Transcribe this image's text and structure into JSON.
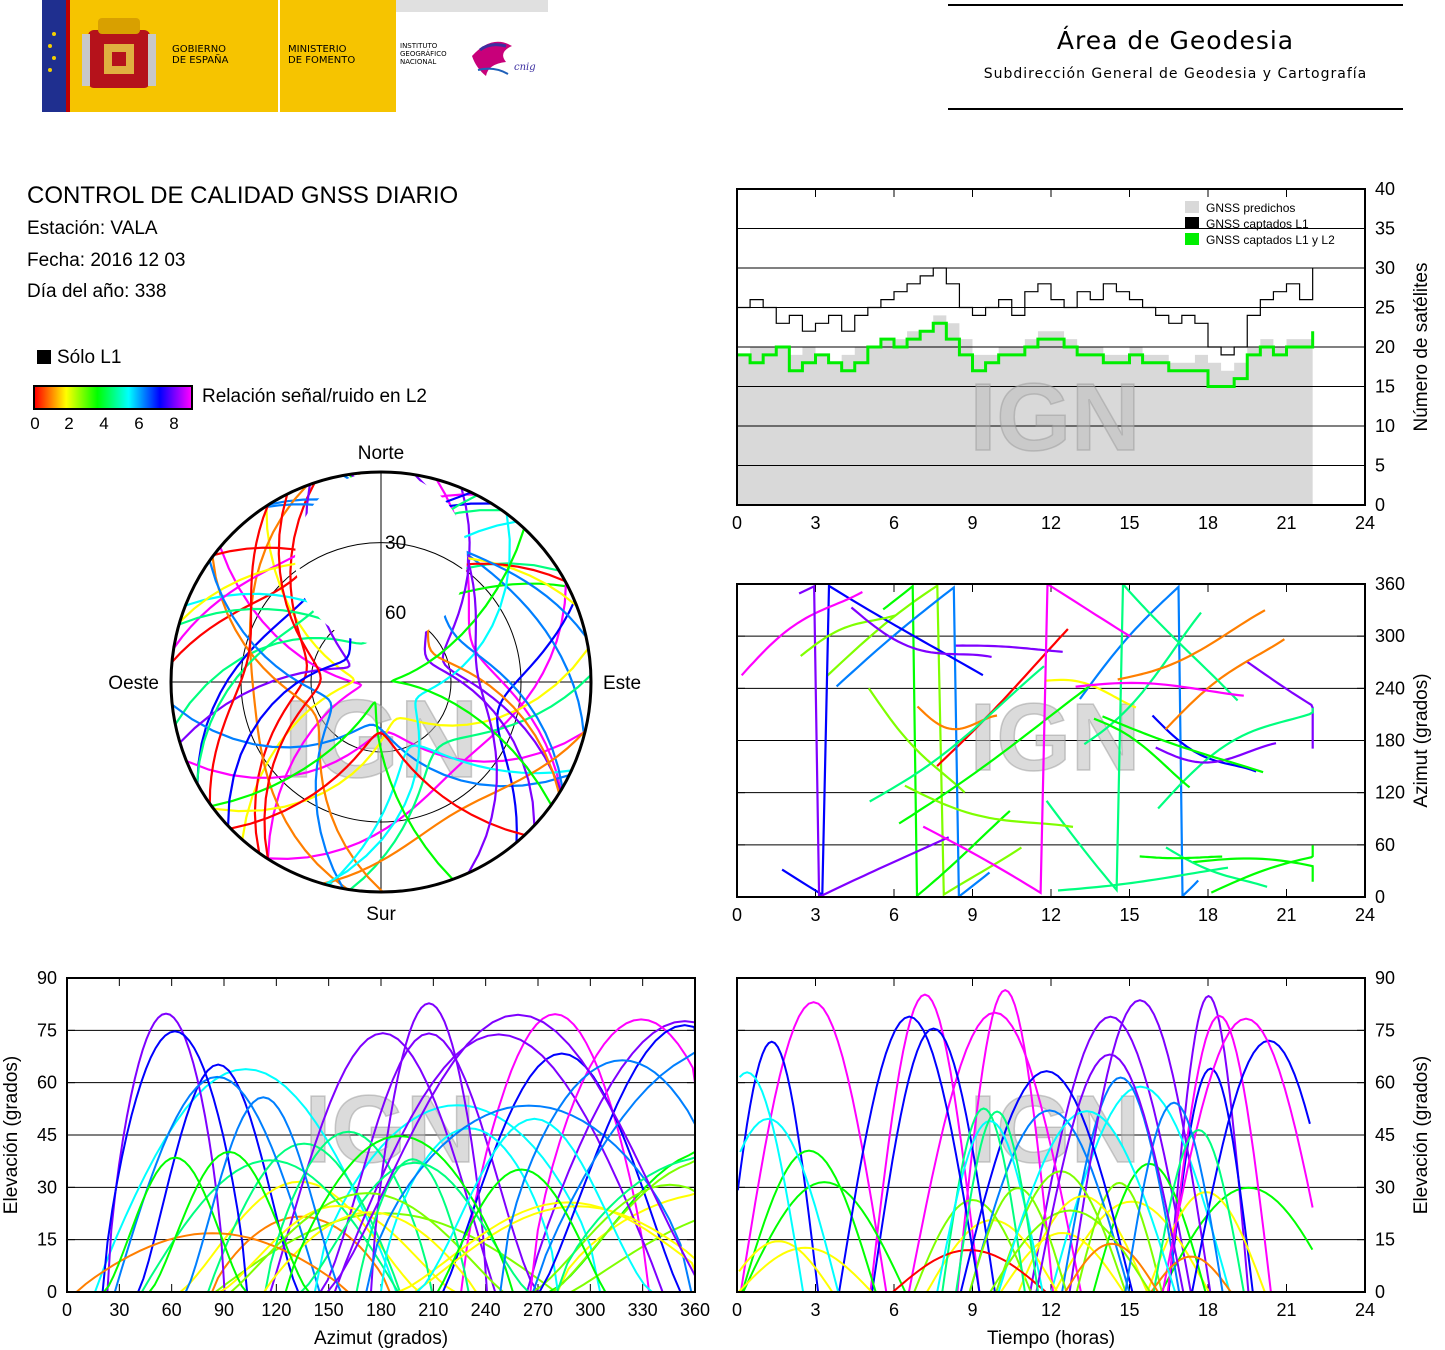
{
  "header": {
    "gobierno": [
      "GOBIERNO",
      "DE ESPAÑA"
    ],
    "ministerio": [
      "MINISTERIO",
      "DE FOMENTO"
    ],
    "instituto": [
      "INSTITUTO",
      "GEOGRÁFICO",
      "NACIONAL"
    ],
    "cnig_text": "cnig",
    "area_title": "Área de Geodesia",
    "area_subtitle": "Subdirección General de Geodesia y Cartografía"
  },
  "report": {
    "title": "CONTROL DE CALIDAD GNSS DIARIO",
    "station": "Estación: VALA",
    "date": "Fecha: 2016 12 03",
    "doy": "Día del año: 338"
  },
  "legend": {
    "l1_only": "Sólo L1",
    "snr_label": "Relación señal/ruido en L2",
    "snr_ticks": [
      "0",
      "2",
      "4",
      "6",
      "8"
    ],
    "colors": [
      "#ff0000",
      "#ff7f00",
      "#ffff00",
      "#7fff00",
      "#00ff00",
      "#00ff7f",
      "#00ffff",
      "#007fff",
      "#0000ff",
      "#7f00ff",
      "#ff00ff"
    ]
  },
  "watermark": "IGN",
  "chart_data": [
    {
      "id": "satellites",
      "type": "area",
      "x_range": [
        0,
        24
      ],
      "ylim": [
        0,
        40
      ],
      "ylabel": "Número de satélites",
      "x_ticks": [
        0,
        3,
        6,
        9,
        12,
        15,
        18,
        21,
        24
      ],
      "y_ticks": [
        0,
        5,
        10,
        15,
        20,
        25,
        30,
        35,
        40
      ],
      "legend_position": "top-right",
      "series": [
        {
          "name": "GNSS predichos",
          "color": "#d9d9d9",
          "x": [
            0,
            0.5,
            1,
            1.5,
            2,
            2.5,
            3,
            3.5,
            4,
            4.5,
            5,
            5.5,
            6,
            6.5,
            7,
            7.5,
            8,
            8.5,
            9,
            9.5,
            10,
            10.5,
            11,
            11.5,
            12,
            12.5,
            13,
            13.5,
            14,
            14.5,
            15,
            15.5,
            16,
            16.5,
            17,
            17.5,
            18,
            18.5,
            19,
            19.5,
            20,
            20.5,
            21,
            21.5,
            22
          ],
          "y": [
            19,
            20,
            20,
            20,
            19,
            20,
            19,
            18,
            19,
            20,
            20,
            21,
            21,
            22,
            22,
            24,
            23,
            21,
            19,
            19,
            20,
            20,
            21,
            22,
            22,
            21,
            20,
            20,
            19,
            19,
            20,
            19,
            19,
            18,
            18,
            19,
            18,
            17,
            18,
            20,
            21,
            20,
            21,
            21,
            22
          ]
        },
        {
          "name": "GNSS captados L1",
          "color": "#000000",
          "x": [
            0,
            0.5,
            1,
            1.5,
            2,
            2.5,
            3,
            3.5,
            4,
            4.5,
            5,
            5.5,
            6,
            6.5,
            7,
            7.5,
            8,
            8.5,
            9,
            9.5,
            10,
            10.5,
            11,
            11.5,
            12,
            12.5,
            13,
            13.5,
            14,
            14.5,
            15,
            15.5,
            16,
            16.5,
            17,
            17.5,
            18,
            18.5,
            19,
            19.5,
            20,
            20.5,
            21,
            21.5,
            22
          ],
          "y": [
            25,
            26,
            25,
            23,
            24,
            22,
            23,
            24,
            22,
            24,
            25,
            26,
            27,
            28,
            29,
            30,
            28,
            25,
            24,
            25,
            26,
            24,
            27,
            28,
            26,
            25,
            27,
            26,
            28,
            27,
            26,
            25,
            24,
            23,
            24,
            23,
            20,
            19,
            20,
            24,
            26,
            27,
            28,
            26,
            30
          ]
        },
        {
          "name": "GNSS captados L1 y L2",
          "color": "#00ee00",
          "x": [
            0,
            0.5,
            1,
            1.5,
            2,
            2.5,
            3,
            3.5,
            4,
            4.5,
            5,
            5.5,
            6,
            6.5,
            7,
            7.5,
            8,
            8.5,
            9,
            9.5,
            10,
            10.5,
            11,
            11.5,
            12,
            12.5,
            13,
            13.5,
            14,
            14.5,
            15,
            15.5,
            16,
            16.5,
            17,
            17.5,
            18,
            18.5,
            19,
            19.5,
            20,
            20.5,
            21,
            21.5,
            22
          ],
          "y": [
            19,
            18,
            19,
            20,
            17,
            18,
            19,
            18,
            17,
            18,
            20,
            21,
            20,
            21,
            22,
            23,
            21,
            19,
            17,
            18,
            19,
            19,
            20,
            21,
            21,
            20,
            19,
            19,
            18,
            18,
            19,
            18,
            18,
            17,
            17,
            17,
            15,
            15,
            16,
            19,
            20,
            19,
            20,
            20,
            22
          ]
        }
      ]
    },
    {
      "id": "azimuth-time",
      "type": "scatter",
      "x_range": [
        0,
        24
      ],
      "ylim": [
        0,
        360
      ],
      "ylabel": "Azimut (grados)",
      "x_ticks": [
        0,
        3,
        6,
        9,
        12,
        15,
        18,
        21,
        24
      ],
      "y_ticks": [
        0,
        60,
        120,
        180,
        240,
        300,
        360
      ]
    },
    {
      "id": "skyplot",
      "type": "scatter",
      "directions": {
        "north": "Norte",
        "south": "Sur",
        "east": "Este",
        "west": "Oeste"
      },
      "ring_labels": [
        "30",
        "60"
      ]
    },
    {
      "id": "elev-azimuth",
      "type": "scatter",
      "x_range": [
        0,
        360
      ],
      "ylim": [
        0,
        90
      ],
      "xlabel": "Azimut (grados)",
      "ylabel": "Elevación (grados)",
      "x_ticks": [
        0,
        30,
        60,
        90,
        120,
        150,
        180,
        210,
        240,
        270,
        300,
        330,
        360
      ],
      "y_ticks": [
        0,
        15,
        30,
        45,
        60,
        75,
        90
      ]
    },
    {
      "id": "elev-time",
      "type": "scatter",
      "x_range": [
        0,
        24
      ],
      "ylim": [
        0,
        90
      ],
      "xlabel": "Tiempo (horas)",
      "ylabel": "Elevación (grados)",
      "x_ticks": [
        0,
        3,
        6,
        9,
        12,
        15,
        18,
        21,
        24
      ],
      "y_ticks": [
        0,
        15,
        30,
        45,
        60,
        75,
        90
      ]
    }
  ]
}
